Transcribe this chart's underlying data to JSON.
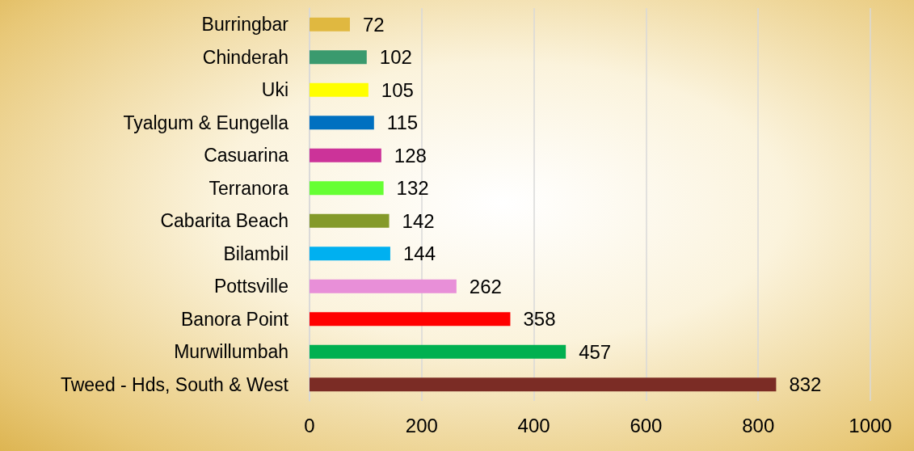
{
  "chart_data": {
    "type": "bar",
    "orientation": "horizontal",
    "categories": [
      "Burringbar",
      "Chinderah",
      "Uki",
      "Tyalgum & Eungella",
      "Casuarina",
      "Terranora",
      "Cabarita Beach",
      "Bilambil",
      "Pottsville",
      "Banora Point",
      "Murwillumbah",
      "Tweed - Hds, South & West"
    ],
    "values": [
      72,
      102,
      105,
      115,
      128,
      132,
      142,
      144,
      262,
      358,
      457,
      832
    ],
    "colors": [
      "#e0b840",
      "#3a9a6e",
      "#ffff00",
      "#0070c0",
      "#cc3399",
      "#66ff33",
      "#849a2a",
      "#00b0f0",
      "#e88fd8",
      "#ff0000",
      "#00b050",
      "#7b2c25"
    ],
    "xlim": [
      0,
      1000
    ],
    "xticks": [
      0,
      200,
      400,
      600,
      800,
      1000
    ],
    "grid": "x",
    "data_labels": true
  }
}
